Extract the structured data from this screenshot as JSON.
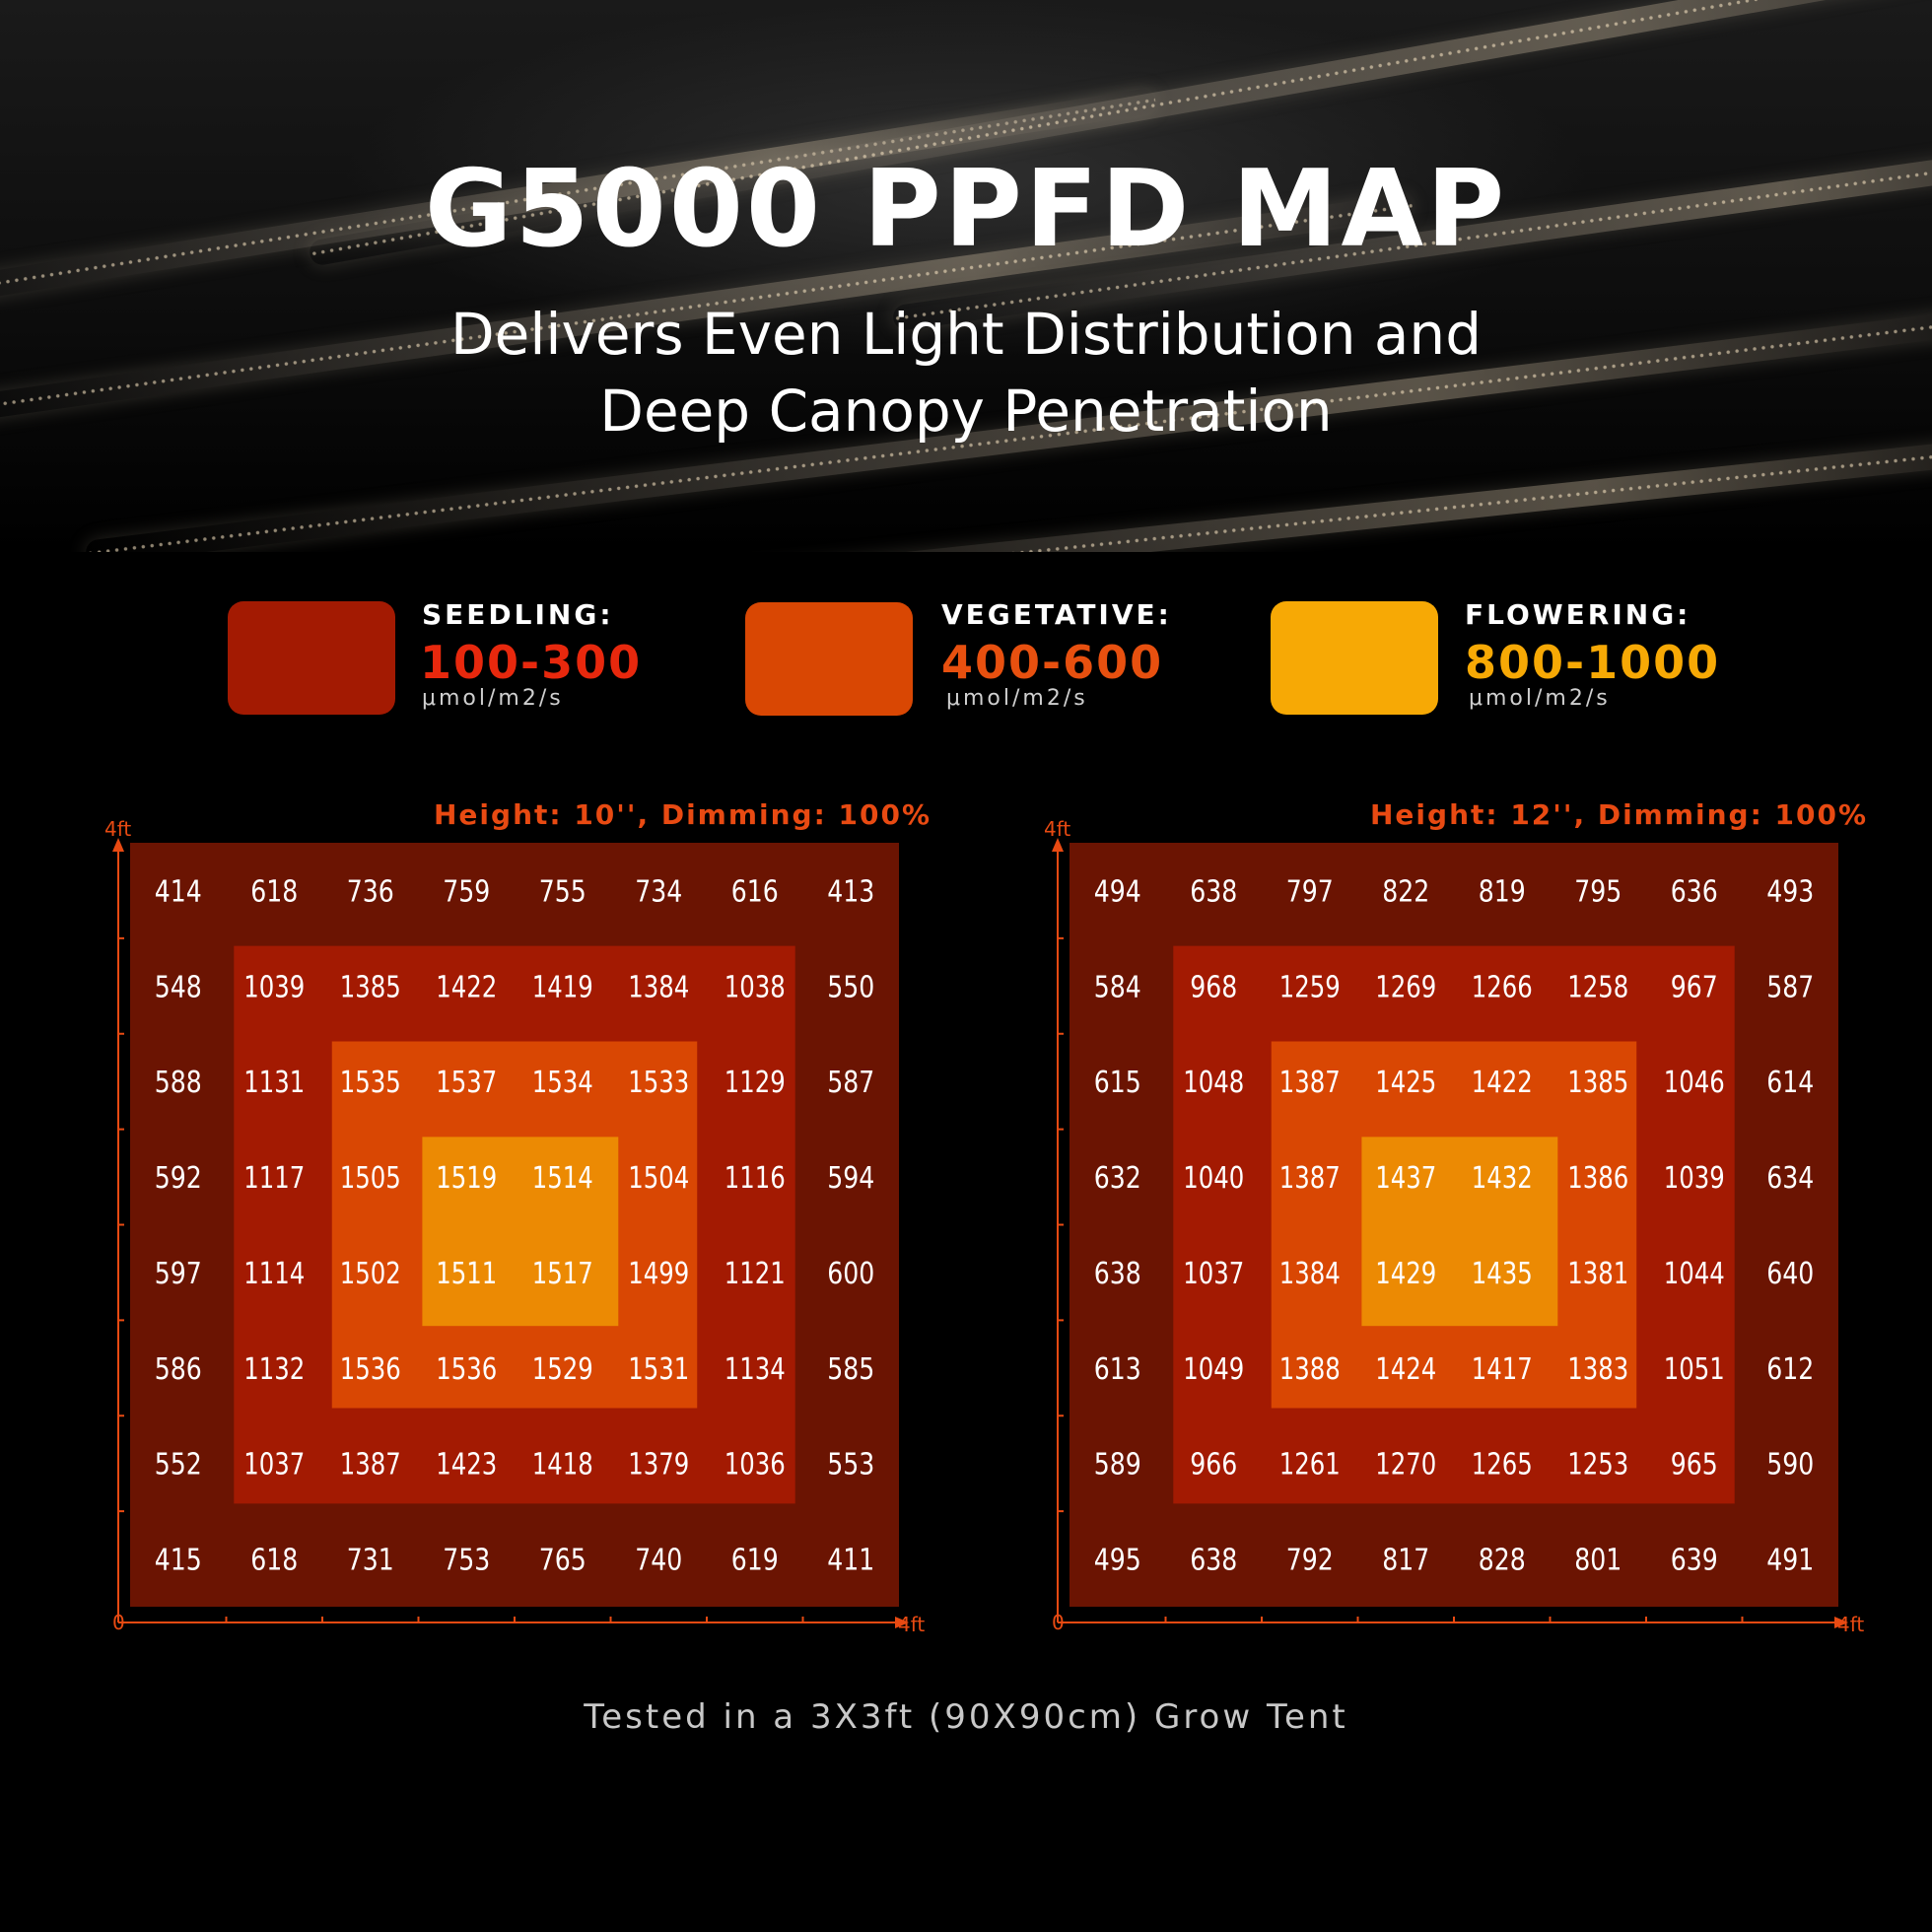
{
  "header": {
    "title": "G5000 PPFD MAP",
    "subtitle_line1": "Delivers Even Light Distribution and",
    "subtitle_line2": "Deep Canopy Penetration"
  },
  "legend": [
    {
      "name": "SEEDLING:",
      "range": "100-300",
      "unit": "μmol/m2/s",
      "color": "#a31a02",
      "range_color": "#e8280d"
    },
    {
      "name": "VEGETATIVE:",
      "range": "400-600",
      "unit": "μmol/m2/s",
      "color": "#d94703",
      "range_color": "#e8500f"
    },
    {
      "name": "FLOWERING:",
      "range": "800-1000",
      "unit": "μmol/m2/s",
      "color": "#f7a905",
      "range_color": "#f7a905"
    }
  ],
  "axis": {
    "origin": "0",
    "max": "4ft"
  },
  "zone_colors": [
    "#6b1402",
    "#a31a02",
    "#d94703",
    "#ec8a03"
  ],
  "chart_data": [
    {
      "type": "heatmap",
      "title": "Height: 10'', Dimming: 100%",
      "xlabel": "4ft",
      "ylabel": "4ft",
      "xlim": [
        0,
        4
      ],
      "ylim": [
        0,
        4
      ],
      "grid": false,
      "values": [
        [
          414,
          618,
          736,
          759,
          755,
          734,
          616,
          413
        ],
        [
          548,
          1039,
          1385,
          1422,
          1419,
          1384,
          1038,
          550
        ],
        [
          588,
          1131,
          1535,
          1537,
          1534,
          1533,
          1129,
          587
        ],
        [
          592,
          1117,
          1505,
          1519,
          1514,
          1504,
          1116,
          594
        ],
        [
          597,
          1114,
          1502,
          1511,
          1517,
          1499,
          1121,
          600
        ],
        [
          586,
          1132,
          1536,
          1536,
          1529,
          1531,
          1134,
          585
        ],
        [
          552,
          1037,
          1387,
          1423,
          1418,
          1379,
          1036,
          553
        ],
        [
          415,
          618,
          731,
          753,
          765,
          740,
          619,
          411
        ]
      ]
    },
    {
      "type": "heatmap",
      "title": "Height: 12'', Dimming: 100%",
      "xlabel": "4ft",
      "ylabel": "4ft",
      "xlim": [
        0,
        4
      ],
      "ylim": [
        0,
        4
      ],
      "grid": false,
      "values": [
        [
          494,
          638,
          797,
          822,
          819,
          795,
          636,
          493
        ],
        [
          584,
          968,
          1259,
          1269,
          1266,
          1258,
          967,
          587
        ],
        [
          615,
          1048,
          1387,
          1425,
          1422,
          1385,
          1046,
          614
        ],
        [
          632,
          1040,
          1387,
          1437,
          1432,
          1386,
          1039,
          634
        ],
        [
          638,
          1037,
          1384,
          1429,
          1435,
          1381,
          1044,
          640
        ],
        [
          613,
          1049,
          1388,
          1424,
          1417,
          1383,
          1051,
          612
        ],
        [
          589,
          966,
          1261,
          1270,
          1265,
          1253,
          965,
          590
        ],
        [
          495,
          638,
          792,
          817,
          828,
          801,
          639,
          491
        ]
      ]
    }
  ],
  "footer": "Tested in a 3X3ft (90X90cm) Grow Tent"
}
